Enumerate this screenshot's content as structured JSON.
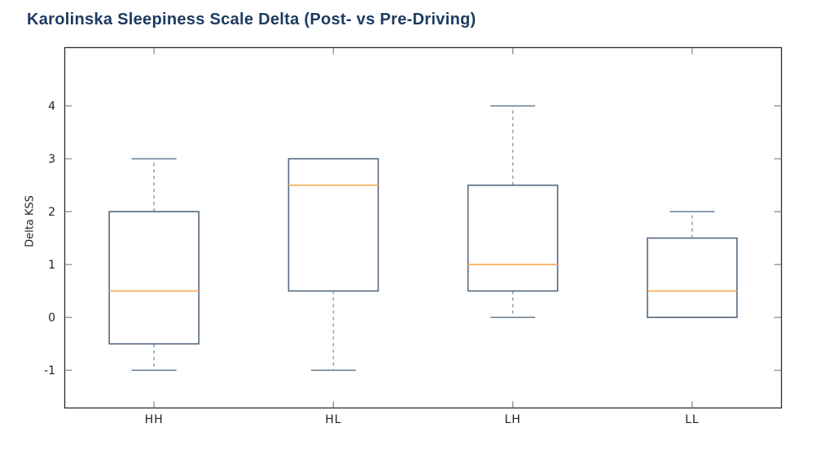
{
  "chart": {
    "title": "Karolinska Sleepiness Scale Delta (Post- vs Pre-Driving)",
    "ylabel": "Delta KSS"
  },
  "chart_data": {
    "type": "boxplot",
    "title": "Karolinska Sleepiness Scale Delta (Post- vs Pre-Driving)",
    "xlabel": "",
    "ylabel": "Delta KSS",
    "categories": [
      "HH",
      "HL",
      "LH",
      "LL"
    ],
    "series": [
      {
        "name": "HH",
        "whisker_low": -1.0,
        "q1": -0.5,
        "median": 0.5,
        "q3": 2.0,
        "whisker_high": 3.0
      },
      {
        "name": "HL",
        "whisker_low": -1.0,
        "q1": 0.5,
        "median": 2.5,
        "q3": 3.0,
        "whisker_high": 3.0
      },
      {
        "name": "LH",
        "whisker_low": 0.0,
        "q1": 0.5,
        "median": 1.0,
        "q3": 2.5,
        "whisker_high": 4.0
      },
      {
        "name": "LL",
        "whisker_low": 0.0,
        "q1": 0.0,
        "median": 0.5,
        "q3": 1.5,
        "whisker_high": 2.0
      }
    ],
    "yticks": [
      -1,
      0,
      1,
      2,
      3,
      4
    ],
    "ylim": [
      -1.72,
      5.11
    ],
    "grid": false,
    "legend": "none",
    "tick_direction": "in",
    "spines": "all-four",
    "colors": {
      "title": "#1c3b61",
      "box_edge": "#54687f",
      "box_fill": "#ffffff",
      "median": "#f8b160",
      "whisker": "#8ca1b6",
      "cap": "#73889d",
      "frame": "#2b2b2b",
      "tick_mark": "#8c8c8c",
      "tick_label": "#1f1f1f",
      "axis_label": "#1f1f1f"
    }
  }
}
